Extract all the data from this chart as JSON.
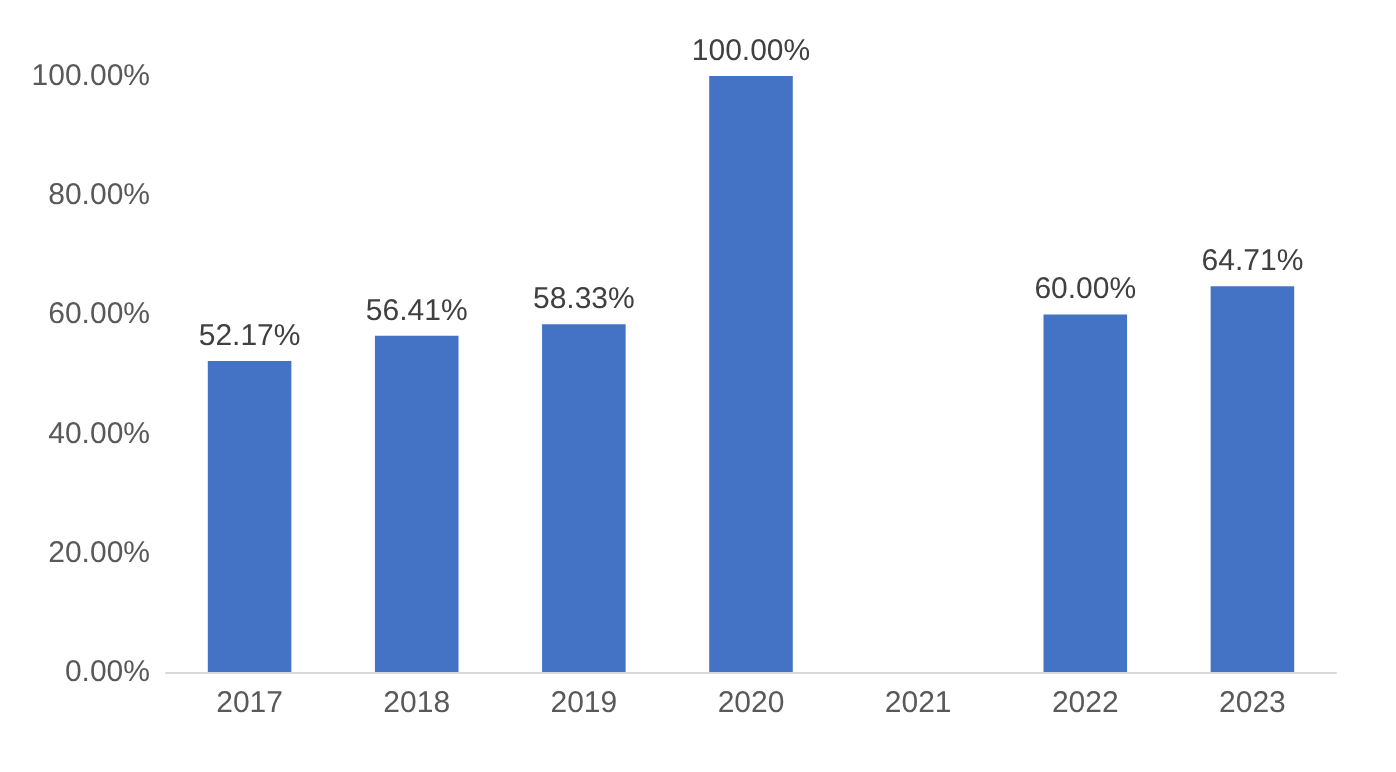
{
  "chart_data": {
    "type": "bar",
    "categories": [
      "2017",
      "2018",
      "2019",
      "2020",
      "2021",
      "2022",
      "2023"
    ],
    "values": [
      52.17,
      56.41,
      58.33,
      100,
      null,
      60,
      64.71
    ],
    "value_labels": [
      "52.17%",
      "56.41%",
      "58.33%",
      "100.00%",
      null,
      "60.00%",
      "64.71%"
    ],
    "color": "#4472c4",
    "ylim": [
      0,
      100
    ],
    "yticks": [
      {
        "value": 0,
        "label": "0.00%"
      },
      {
        "value": 20,
        "label": "20.00%"
      },
      {
        "value": 40,
        "label": "40.00%"
      },
      {
        "value": 60,
        "label": "60.00%"
      },
      {
        "value": 80,
        "label": "80.00%"
      },
      {
        "value": 100,
        "label": "100.00%"
      }
    ],
    "grid": false
  }
}
